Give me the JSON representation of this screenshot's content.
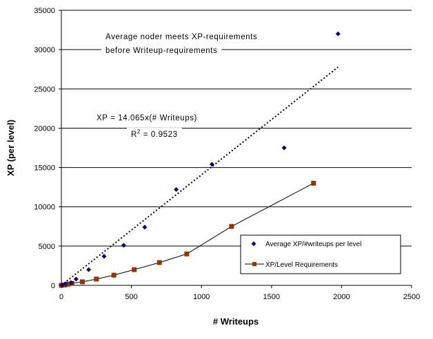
{
  "chart_data": {
    "type": "scatter",
    "xlabel": "# Writeups",
    "ylabel": "XP (per level)",
    "xlim": [
      0,
      2500
    ],
    "ylim": [
      0,
      35000
    ],
    "x_ticks": [
      0,
      500,
      1000,
      1500,
      2000,
      2500
    ],
    "y_ticks": [
      0,
      5000,
      10000,
      15000,
      20000,
      25000,
      30000,
      35000
    ],
    "grid": "horizontal",
    "legend_position": "bottom-right",
    "series": [
      {
        "name": "Average XP/#writeups per level",
        "type": "scatter",
        "marker": "diamond",
        "color": "#000080",
        "x": [
          5,
          30,
          70,
          105,
          195,
          305,
          445,
          595,
          820,
          1075,
          1590,
          1975
        ],
        "y": [
          50,
          200,
          350,
          800,
          2000,
          3700,
          5100,
          7400,
          12200,
          15400,
          17500,
          32000
        ]
      },
      {
        "name": "XP/Level Requirements",
        "type": "line",
        "marker": "square",
        "color": "#993300",
        "line_color": "#000000",
        "x": [
          0,
          25,
          50,
          75,
          150,
          250,
          375,
          520,
          700,
          895,
          1215,
          1800
        ],
        "y": [
          0,
          50,
          150,
          250,
          450,
          800,
          1300,
          2000,
          2900,
          4000,
          7500,
          13000
        ]
      }
    ],
    "trendline": {
      "type": "linear",
      "slope": 14.065,
      "x_range": [
        0,
        1975
      ],
      "style": "dotted"
    },
    "annotations": [
      {
        "line1": "Average noder meets XP-requirements",
        "line2": "before Writeup-requirements"
      },
      {
        "line1": "XP = 14.065x(# Writeups)",
        "line2_prefix": "R",
        "line2_sup": "2",
        "line2_suffix": " = 0.9523"
      }
    ]
  }
}
